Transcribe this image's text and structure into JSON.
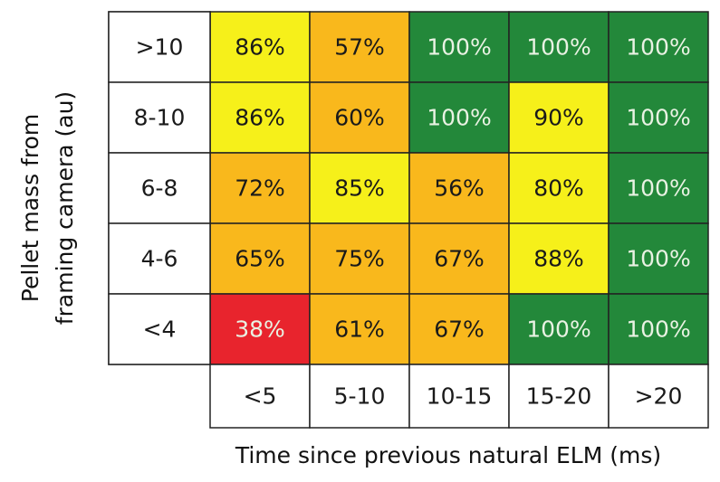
{
  "chart_data": {
    "type": "heatmap",
    "title": "",
    "xlabel": "Time since previous natural ELM (ms)",
    "ylabel_lines": [
      "Pellet mass from",
      "framing camera (au)"
    ],
    "x_categories": [
      "<5",
      "5-10",
      "10-15",
      "15-20",
      ">20"
    ],
    "y_categories": [
      ">10",
      "8-10",
      "6-8",
      "4-6",
      "<4"
    ],
    "values": [
      [
        86,
        57,
        100,
        100,
        100
      ],
      [
        86,
        60,
        100,
        90,
        100
      ],
      [
        72,
        85,
        56,
        80,
        100
      ],
      [
        65,
        75,
        67,
        88,
        100
      ],
      [
        38,
        61,
        67,
        100,
        100
      ]
    ],
    "labels": [
      [
        "86%",
        "57%",
        "100%",
        "100%",
        "100%"
      ],
      [
        "86%",
        "60%",
        "100%",
        "90%",
        "100%"
      ],
      [
        "72%",
        "85%",
        "56%",
        "80%",
        "100%"
      ],
      [
        "65%",
        "75%",
        "67%",
        "88%",
        "100%"
      ],
      [
        "38%",
        "61%",
        "67%",
        "100%",
        "100%"
      ]
    ],
    "cell_colors": [
      [
        "#f6f01a",
        "#f9b81c",
        "#23883a",
        "#23883a",
        "#23883a"
      ],
      [
        "#f6f01a",
        "#f9b81c",
        "#23883a",
        "#f6f01a",
        "#23883a"
      ],
      [
        "#f9b81c",
        "#f6f01a",
        "#f9b81c",
        "#f6f01a",
        "#23883a"
      ],
      [
        "#f9b81c",
        "#f9b81c",
        "#f9b81c",
        "#f6f01a",
        "#23883a"
      ],
      [
        "#e8242d",
        "#f9b81c",
        "#f9b81c",
        "#23883a",
        "#23883a"
      ]
    ],
    "colors": {
      "red": "#e8242d",
      "orange": "#f9b81c",
      "yellow": "#f6f01a",
      "green": "#23883a",
      "dark_text": "#1a1a1a",
      "light_text": "#e9f2e3",
      "grid_line": "#222222"
    }
  }
}
